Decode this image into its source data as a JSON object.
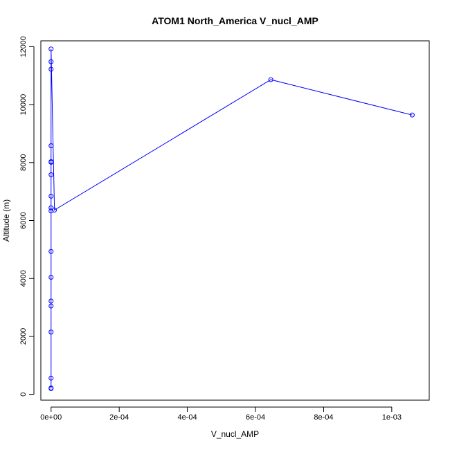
{
  "chart_data": {
    "type": "line",
    "title": "ATOM1 North_America V_nucl_AMP",
    "xlabel": "V_nucl_AMP",
    "ylabel": "Altitude (m)",
    "xlim": [
      -3e-05,
      0.00111
    ],
    "ylim": [
      -200,
      12200
    ],
    "xticks": [
      {
        "value": 0,
        "label": "0e+00"
      },
      {
        "value": 0.0002,
        "label": "2e-04"
      },
      {
        "value": 0.0004,
        "label": "4e-04"
      },
      {
        "value": 0.0006,
        "label": "6e-04"
      },
      {
        "value": 0.0008,
        "label": "8e-04"
      },
      {
        "value": 0.001,
        "label": "1e-03"
      }
    ],
    "yticks": [
      {
        "value": 0,
        "label": "0"
      },
      {
        "value": 2000,
        "label": "2000"
      },
      {
        "value": 4000,
        "label": "4000"
      },
      {
        "value": 6000,
        "label": "6000"
      },
      {
        "value": 8000,
        "label": "8000"
      },
      {
        "value": 10000,
        "label": "10000"
      },
      {
        "value": 12000,
        "label": "12000"
      }
    ],
    "grid": false,
    "legend": "none",
    "series": [
      {
        "color": "#0000ff",
        "x": [
          0,
          0,
          0,
          0,
          0,
          0,
          0,
          0,
          0,
          0,
          0,
          0,
          0,
          0,
          0,
          0,
          0,
          0,
          1e-05,
          0.000645,
          0.00106
        ],
        "y": [
          200,
          220,
          560,
          2150,
          3050,
          3220,
          4040,
          4930,
          6330,
          6440,
          6840,
          7580,
          8010,
          8030,
          8580,
          11220,
          11480,
          11920,
          6360,
          10860,
          9640
        ]
      }
    ]
  }
}
